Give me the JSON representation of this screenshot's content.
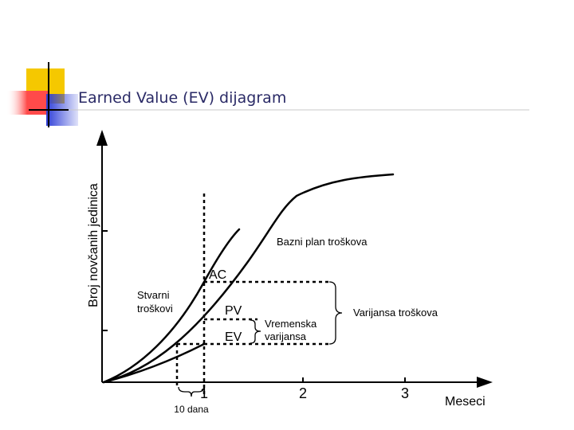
{
  "slide": {
    "title": "Earned Value (EV) dijagram"
  },
  "diagram": {
    "y_axis_label": "Broj novčanih jedinica",
    "x_axis_label": "Meseci",
    "x_ticks": [
      "1",
      "2",
      "3"
    ],
    "marker_labels": {
      "ac": "AC",
      "pv": "PV",
      "ev": "EV"
    },
    "curve_labels": {
      "planned": "Bazni plan troškova",
      "actual_line1": "Stvarni",
      "actual_line2": "troškovi"
    },
    "bracket_labels": {
      "schedule_line1": "Vremenska",
      "schedule_line2": "varijansa",
      "cost": "Varijansa troškova",
      "time_offset": "10 dana"
    }
  },
  "colors": {
    "title": "#2a2a66",
    "deco_yellow": "#f2c200",
    "deco_red": "#ff4040",
    "deco_blue": "#2f3fd8",
    "line": "#000000"
  }
}
